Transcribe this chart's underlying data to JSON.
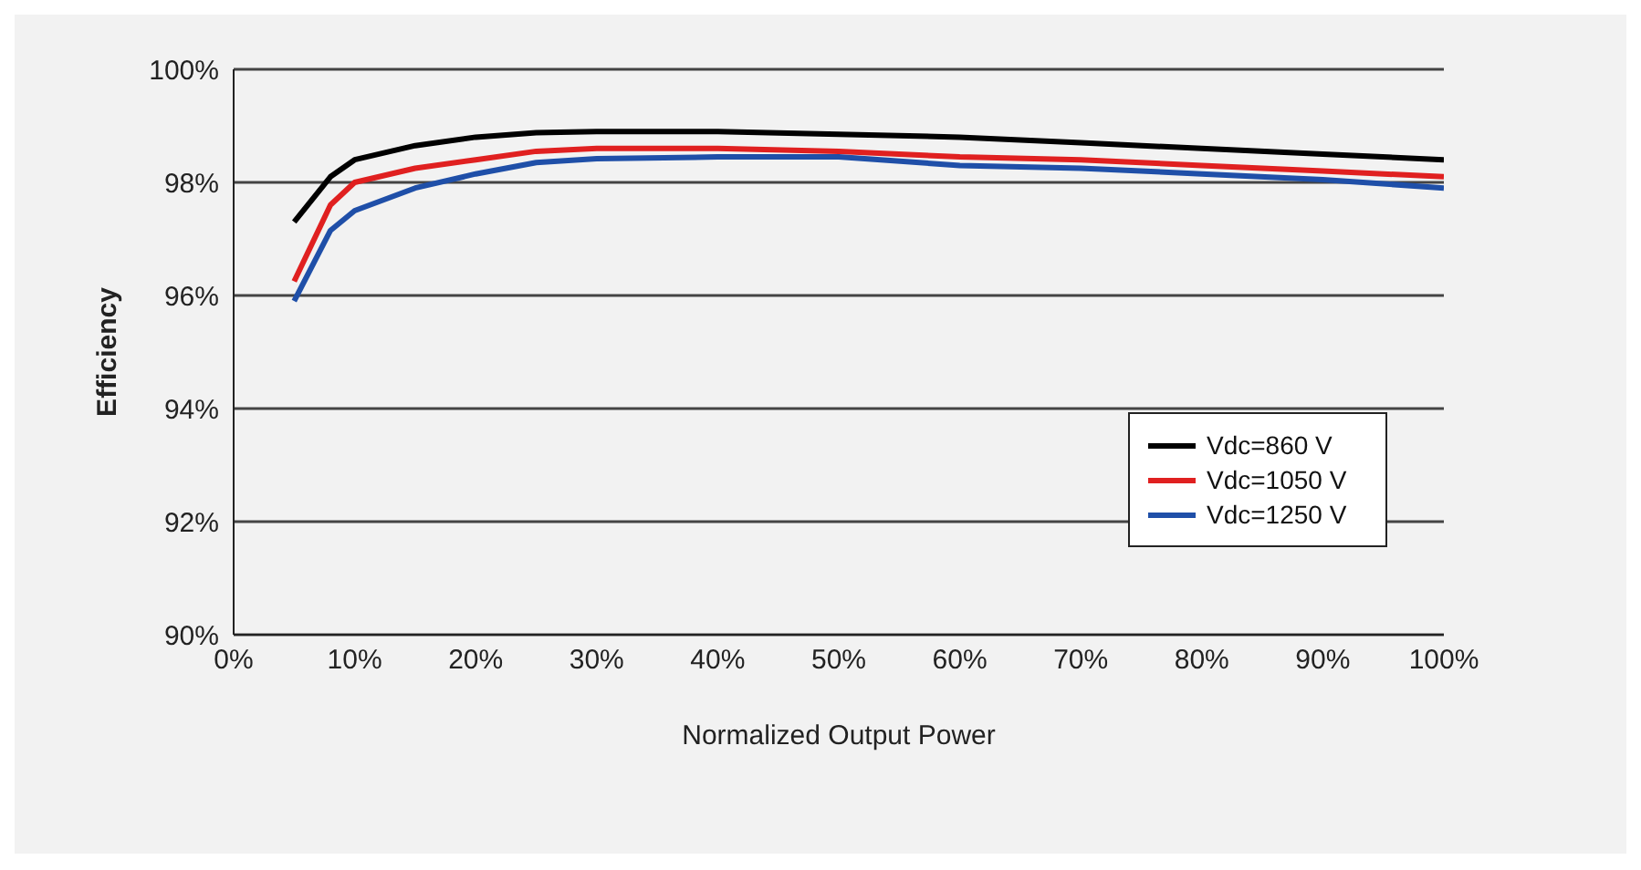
{
  "chart_data": {
    "type": "line",
    "xlabel": "Normalized Output Power",
    "ylabel": "Efficiency",
    "x": [
      5,
      8,
      10,
      15,
      20,
      25,
      30,
      40,
      50,
      60,
      70,
      80,
      90,
      100
    ],
    "series": [
      {
        "name": "Vdc=860 V",
        "color": "#000000",
        "values": [
          97.3,
          98.1,
          98.4,
          98.65,
          98.8,
          98.88,
          98.9,
          98.9,
          98.85,
          98.8,
          98.7,
          98.6,
          98.5,
          98.4
        ]
      },
      {
        "name": "Vdc=1050 V",
        "color": "#e02020",
        "values": [
          96.25,
          97.6,
          98.0,
          98.25,
          98.4,
          98.55,
          98.6,
          98.6,
          98.55,
          98.45,
          98.4,
          98.3,
          98.2,
          98.1
        ]
      },
      {
        "name": "Vdc=1250 V",
        "color": "#1f4fa8",
        "values": [
          95.9,
          97.15,
          97.5,
          97.9,
          98.15,
          98.35,
          98.42,
          98.45,
          98.45,
          98.3,
          98.25,
          98.15,
          98.05,
          97.9
        ]
      }
    ],
    "xlim": [
      0,
      100
    ],
    "xticks": [
      {
        "value": 0,
        "label": "0%"
      },
      {
        "value": 10,
        "label": "10%"
      },
      {
        "value": 20,
        "label": "20%"
      },
      {
        "value": 30,
        "label": "30%"
      },
      {
        "value": 40,
        "label": "40%"
      },
      {
        "value": 50,
        "label": "50%"
      },
      {
        "value": 60,
        "label": "60%"
      },
      {
        "value": 70,
        "label": "70%"
      },
      {
        "value": 80,
        "label": "80%"
      },
      {
        "value": 90,
        "label": "90%"
      },
      {
        "value": 100,
        "label": "100%"
      }
    ],
    "ylim": [
      90,
      100
    ],
    "yticks": [
      {
        "value": 90,
        "label": "90%"
      },
      {
        "value": 92,
        "label": "92%"
      },
      {
        "value": 94,
        "label": "94%"
      },
      {
        "value": 96,
        "label": "96%"
      },
      {
        "value": 98,
        "label": "98%"
      },
      {
        "value": 100,
        "label": "100%"
      }
    ],
    "grid": "y",
    "legend": "right",
    "marker": "none",
    "line_style": "solid"
  }
}
